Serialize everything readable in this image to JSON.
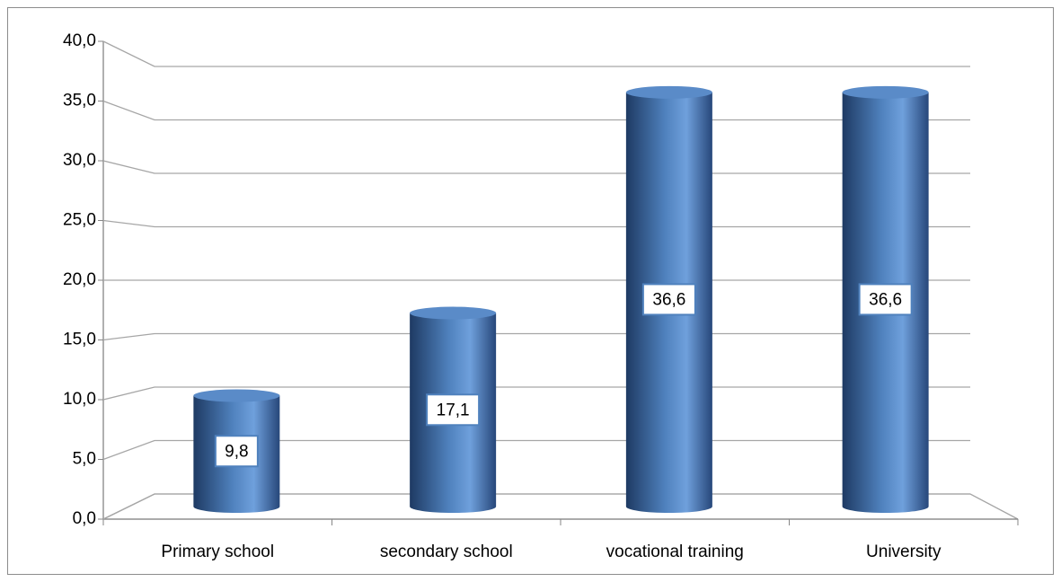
{
  "chart_data": {
    "type": "bar3d",
    "categories": [
      "Primary school",
      "secondary school",
      "vocational training",
      "University"
    ],
    "values": [
      9.8,
      17.1,
      36.6,
      36.6
    ],
    "value_labels": [
      "9,8",
      "17,1",
      "36,6",
      "36,6"
    ],
    "color": "#4f81bd",
    "ylim": [
      0,
      40
    ],
    "yticks": [
      {
        "value": 0,
        "label": "0,0"
      },
      {
        "value": 5,
        "label": "5,0"
      },
      {
        "value": 10,
        "label": "10,0"
      },
      {
        "value": 15,
        "label": "15,0"
      },
      {
        "value": 20,
        "label": "20,0"
      },
      {
        "value": 25,
        "label": "25,0"
      },
      {
        "value": 30,
        "label": "30,0"
      },
      {
        "value": 35,
        "label": "35,0"
      },
      {
        "value": 40,
        "label": "40,0"
      }
    ],
    "grid": true
  }
}
